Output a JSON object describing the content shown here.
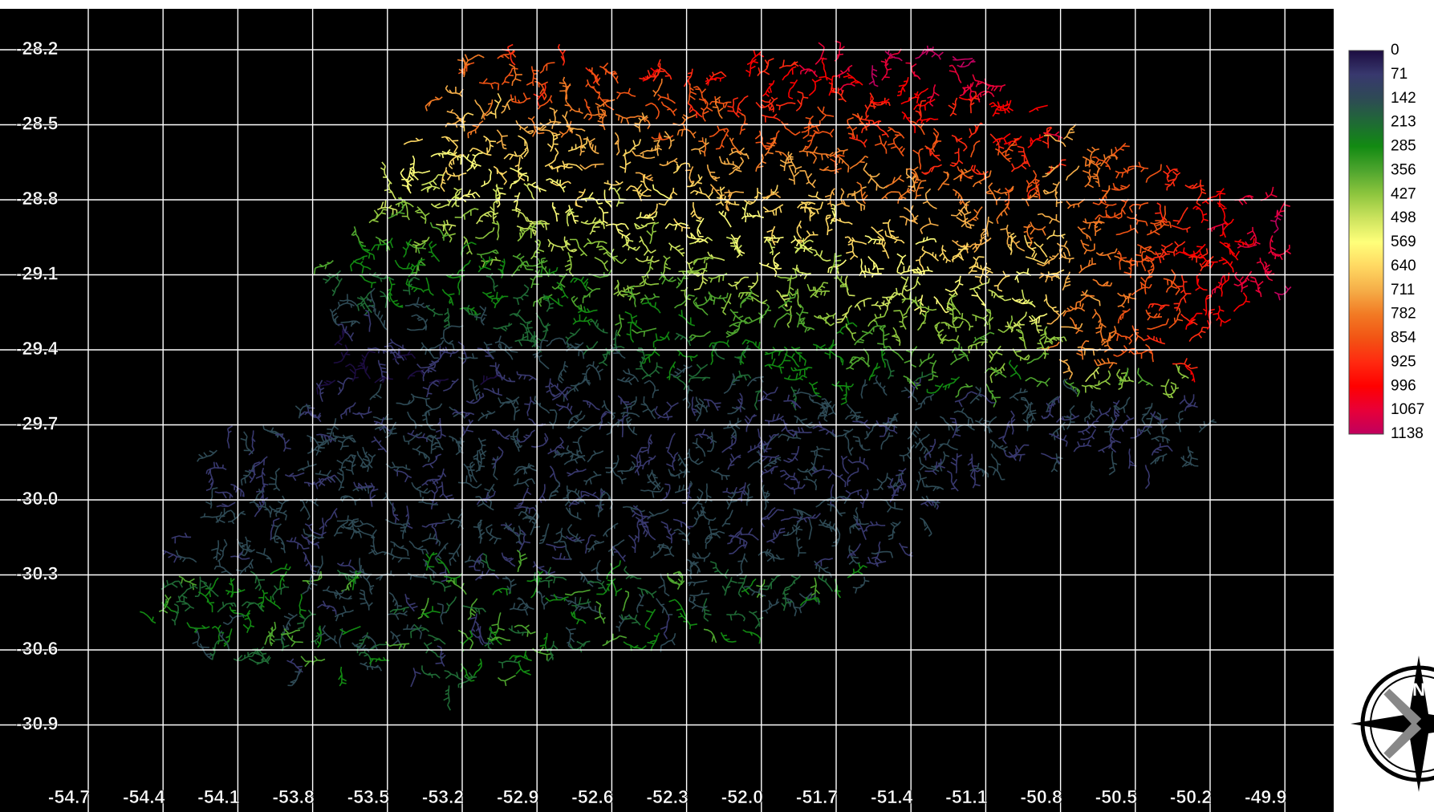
{
  "map": {
    "lat_ticks": [
      -28.2,
      -28.5,
      -28.8,
      -29.1,
      -29.4,
      -29.7,
      {
        "value": -30.0,
        "label": "-30.0"
      },
      -30.3,
      -30.6,
      -30.9
    ],
    "lon_ticks": [
      -54.7,
      -54.4,
      -54.1,
      -53.8,
      -53.5,
      -53.2,
      -52.9,
      -52.6,
      -52.3,
      {
        "value": -52.0,
        "label": "-52.0"
      },
      -51.7,
      -51.4,
      -51.1,
      -50.8,
      -50.5,
      -50.2,
      -49.9
    ],
    "legend": {
      "labels": [
        0,
        71,
        142,
        213,
        285,
        356,
        427,
        498,
        569,
        640,
        711,
        782,
        854,
        925,
        996,
        1067,
        1138
      ],
      "colors": [
        "#1c0c40",
        "#38386e",
        "#2e4a55",
        "#1f6a35",
        "#128a12",
        "#4ea52e",
        "#8ec63e",
        "#cce35e",
        "#ffff7a",
        "#ffd862",
        "#f5ae48",
        "#f27a24",
        "#f25414",
        "#ff2a10",
        "#ff0000",
        "#e80038",
        "#c0005e"
      ]
    }
  }
}
